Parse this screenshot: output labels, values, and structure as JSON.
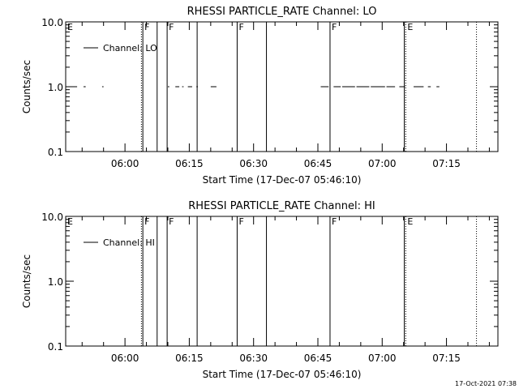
{
  "colors": {
    "background": "#ffffff",
    "foreground": "#000000"
  },
  "timestamp": "17-Oct-2021 07:38",
  "chart_data": [
    {
      "type": "line",
      "title": "RHESSI PARTICLE_RATE Channel: LO",
      "xlabel": "Start Time (17-Dec-07 05:46:10)",
      "ylabel": "Counts/sec",
      "x_axis": "time",
      "x_start": "05:46:10",
      "xlim": [
        "05:46:10",
        "07:27:00"
      ],
      "yscale": "log",
      "ylim": [
        0.1,
        10.0
      ],
      "ytick_labels": [
        "0.1",
        "1.0",
        "10.0"
      ],
      "xtick_labels": [
        "06:00",
        "06:15",
        "06:30",
        "06:45",
        "07:00",
        "07:15"
      ],
      "grid": false,
      "legend": {
        "position": "top-left",
        "entries": [
          "Channel: LO"
        ]
      },
      "series": [
        {
          "name": "Channel: LO",
          "segments": [
            [
              "05:48:00",
              "05:48:50",
              1.0
            ],
            [
              "05:50:20",
              "05:50:50",
              1.0
            ],
            [
              "05:54:40",
              "05:55:00",
              1.0
            ],
            [
              "06:10:00",
              "06:10:20",
              1.0
            ],
            [
              "06:11:45",
              "06:12:40",
              1.0
            ],
            [
              "06:13:20",
              "06:13:40",
              1.0
            ],
            [
              "06:14:40",
              "06:15:40",
              1.0
            ],
            [
              "06:16:40",
              "06:17:00",
              1.0
            ],
            [
              "06:20:00",
              "06:21:20",
              1.0
            ],
            [
              "06:45:40",
              "06:47:30",
              1.0
            ],
            [
              "06:48:40",
              "06:50:20",
              1.0
            ],
            [
              "06:50:40",
              "06:53:40",
              1.0
            ],
            [
              "06:54:00",
              "06:57:00",
              1.0
            ],
            [
              "06:57:20",
              "07:00:40",
              1.0
            ],
            [
              "07:01:00",
              "07:03:00",
              1.0
            ],
            [
              "07:04:00",
              "07:05:20",
              1.0
            ],
            [
              "07:07:20",
              "07:09:40",
              1.0
            ],
            [
              "07:10:40",
              "07:11:20",
              1.0
            ],
            [
              "07:12:40",
              "07:13:20",
              1.0
            ]
          ]
        }
      ],
      "markers": [
        {
          "time": "05:46:10",
          "label": "E",
          "style": "none"
        },
        {
          "time": "06:03:50",
          "label": "",
          "style": "dotted"
        },
        {
          "time": "06:04:10",
          "label": "F",
          "style": "solid"
        },
        {
          "time": "06:07:30",
          "label": "",
          "style": "solid"
        },
        {
          "time": "06:09:50",
          "label": "F",
          "style": "solid"
        },
        {
          "time": "06:16:50",
          "label": "",
          "style": "solid"
        },
        {
          "time": "06:26:10",
          "label": "F",
          "style": "solid"
        },
        {
          "time": "06:33:00",
          "label": "",
          "style": "solid"
        },
        {
          "time": "06:47:50",
          "label": "F",
          "style": "solid"
        },
        {
          "time": "07:05:10",
          "label": "",
          "style": "solid"
        },
        {
          "time": "07:05:30",
          "label": "E",
          "style": "dotted"
        },
        {
          "time": "07:22:00",
          "label": "",
          "style": "dotted"
        }
      ]
    },
    {
      "type": "line",
      "title": "RHESSI PARTICLE_RATE Channel: HI",
      "xlabel": "Start Time (17-Dec-07 05:46:10)",
      "ylabel": "Counts/sec",
      "x_axis": "time",
      "x_start": "05:46:10",
      "xlim": [
        "05:46:10",
        "07:27:00"
      ],
      "yscale": "log",
      "ylim": [
        0.1,
        10.0
      ],
      "ytick_labels": [
        "0.1",
        "1.0",
        "10.0"
      ],
      "xtick_labels": [
        "06:00",
        "06:15",
        "06:30",
        "06:45",
        "07:00",
        "07:15"
      ],
      "grid": false,
      "legend": {
        "position": "top-left",
        "entries": [
          "Channel: HI"
        ]
      },
      "series": [
        {
          "name": "Channel: HI",
          "segments": []
        }
      ],
      "markers": [
        {
          "time": "05:46:10",
          "label": "E",
          "style": "none"
        },
        {
          "time": "06:03:50",
          "label": "",
          "style": "dotted"
        },
        {
          "time": "06:04:10",
          "label": "F",
          "style": "solid"
        },
        {
          "time": "06:07:30",
          "label": "",
          "style": "solid"
        },
        {
          "time": "06:09:50",
          "label": "F",
          "style": "solid"
        },
        {
          "time": "06:16:50",
          "label": "",
          "style": "solid"
        },
        {
          "time": "06:26:10",
          "label": "F",
          "style": "solid"
        },
        {
          "time": "06:33:00",
          "label": "",
          "style": "solid"
        },
        {
          "time": "06:47:50",
          "label": "F",
          "style": "solid"
        },
        {
          "time": "07:05:10",
          "label": "",
          "style": "solid"
        },
        {
          "time": "07:05:30",
          "label": "E",
          "style": "dotted"
        },
        {
          "time": "07:22:00",
          "label": "",
          "style": "dotted"
        }
      ]
    }
  ]
}
